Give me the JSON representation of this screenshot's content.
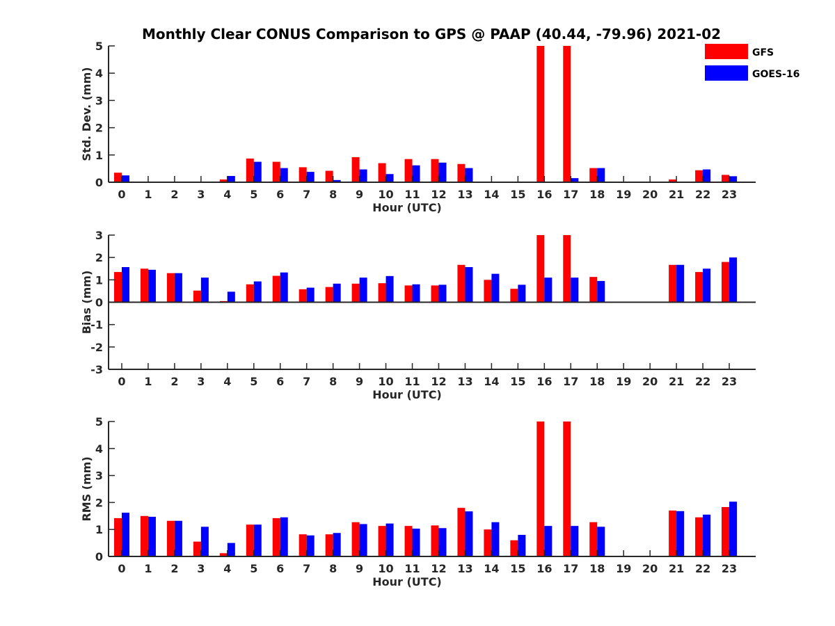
{
  "chart_data": {
    "title": "Monthly Clear CONUS Comparison to GPS @ PAAP (40.44, -79.96) 2021-02",
    "type": "bar",
    "series_names": [
      "GFS",
      "GOES-16"
    ],
    "colors": {
      "GFS": "#ff0000",
      "GOES-16": "#0000ff"
    },
    "legend_placement": "top-right",
    "grid": false,
    "panels": [
      {
        "type": "bar",
        "ylabel": "Std. Dev. (mm)",
        "xlabel": "Hour (UTC)",
        "ylim": [
          0,
          5
        ],
        "yticks": [
          0,
          1,
          2,
          3,
          4,
          5
        ],
        "categories": [
          "0",
          "1",
          "2",
          "3",
          "4",
          "5",
          "6",
          "7",
          "8",
          "9",
          "10",
          "11",
          "12",
          "13",
          "14",
          "15",
          "16",
          "17",
          "18",
          "19",
          "20",
          "21",
          "22",
          "23"
        ],
        "series": [
          {
            "name": "GFS",
            "values": [
              0.35,
              0,
              0,
              0,
              0.1,
              0.87,
              0.75,
              0.55,
              0.42,
              0.92,
              0.7,
              0.85,
              0.85,
              0.67,
              0,
              0,
              5,
              5,
              0.52,
              0,
              0,
              0.1,
              0.44,
              0.27
            ]
          },
          {
            "name": "GOES-16",
            "values": [
              0.25,
              0,
              0,
              0,
              0.23,
              0.75,
              0.52,
              0.38,
              0.08,
              0.47,
              0.3,
              0.62,
              0.72,
              0.52,
              0,
              0,
              0,
              0.15,
              0.52,
              0,
              0,
              0,
              0.47,
              0.22
            ]
          }
        ]
      },
      {
        "type": "bar",
        "ylabel": "Bias (mm)",
        "xlabel": "Hour (UTC)",
        "ylim": [
          -3,
          3
        ],
        "yticks": [
          -3,
          -2,
          -1,
          0,
          1,
          2,
          3
        ],
        "categories": [
          "0",
          "1",
          "2",
          "3",
          "4",
          "5",
          "6",
          "7",
          "8",
          "9",
          "10",
          "11",
          "12",
          "13",
          "14",
          "15",
          "16",
          "17",
          "18",
          "19",
          "20",
          "21",
          "22",
          "23"
        ],
        "series": [
          {
            "name": "GFS",
            "values": [
              1.35,
              1.5,
              1.3,
              0.52,
              0.05,
              0.8,
              1.18,
              0.58,
              0.68,
              0.83,
              0.85,
              0.75,
              0.75,
              1.67,
              1.0,
              0.6,
              3,
              3,
              1.13,
              0,
              0,
              1.67,
              1.35,
              1.8
            ]
          },
          {
            "name": "GOES-16",
            "values": [
              1.57,
              1.45,
              1.3,
              1.1,
              0.47,
              0.93,
              1.33,
              0.65,
              0.83,
              1.1,
              1.17,
              0.8,
              0.78,
              1.57,
              1.27,
              0.78,
              1.1,
              1.1,
              0.95,
              0,
              0,
              1.67,
              1.5,
              2.0
            ]
          }
        ]
      },
      {
        "type": "bar",
        "ylabel": "RMS (mm)",
        "xlabel": "Hour (UTC)",
        "ylim": [
          0,
          5
        ],
        "yticks": [
          0,
          1,
          2,
          3,
          4,
          5
        ],
        "categories": [
          "0",
          "1",
          "2",
          "3",
          "4",
          "5",
          "6",
          "7",
          "8",
          "9",
          "10",
          "11",
          "12",
          "13",
          "14",
          "15",
          "16",
          "17",
          "18",
          "19",
          "20",
          "21",
          "22",
          "23"
        ],
        "series": [
          {
            "name": "GFS",
            "values": [
              1.42,
              1.5,
              1.32,
              0.55,
              0.12,
              1.18,
              1.42,
              0.82,
              0.82,
              1.27,
              1.13,
              1.13,
              1.15,
              1.8,
              1.0,
              0.6,
              5,
              5,
              1.27,
              0,
              0,
              1.7,
              1.45,
              1.83
            ]
          },
          {
            "name": "GOES-16",
            "values": [
              1.62,
              1.47,
              1.32,
              1.1,
              0.5,
              1.18,
              1.45,
              0.78,
              0.87,
              1.2,
              1.22,
              1.03,
              1.05,
              1.67,
              1.27,
              0.8,
              1.13,
              1.13,
              1.1,
              0,
              0,
              1.68,
              1.55,
              2.03
            ]
          }
        ]
      }
    ]
  }
}
